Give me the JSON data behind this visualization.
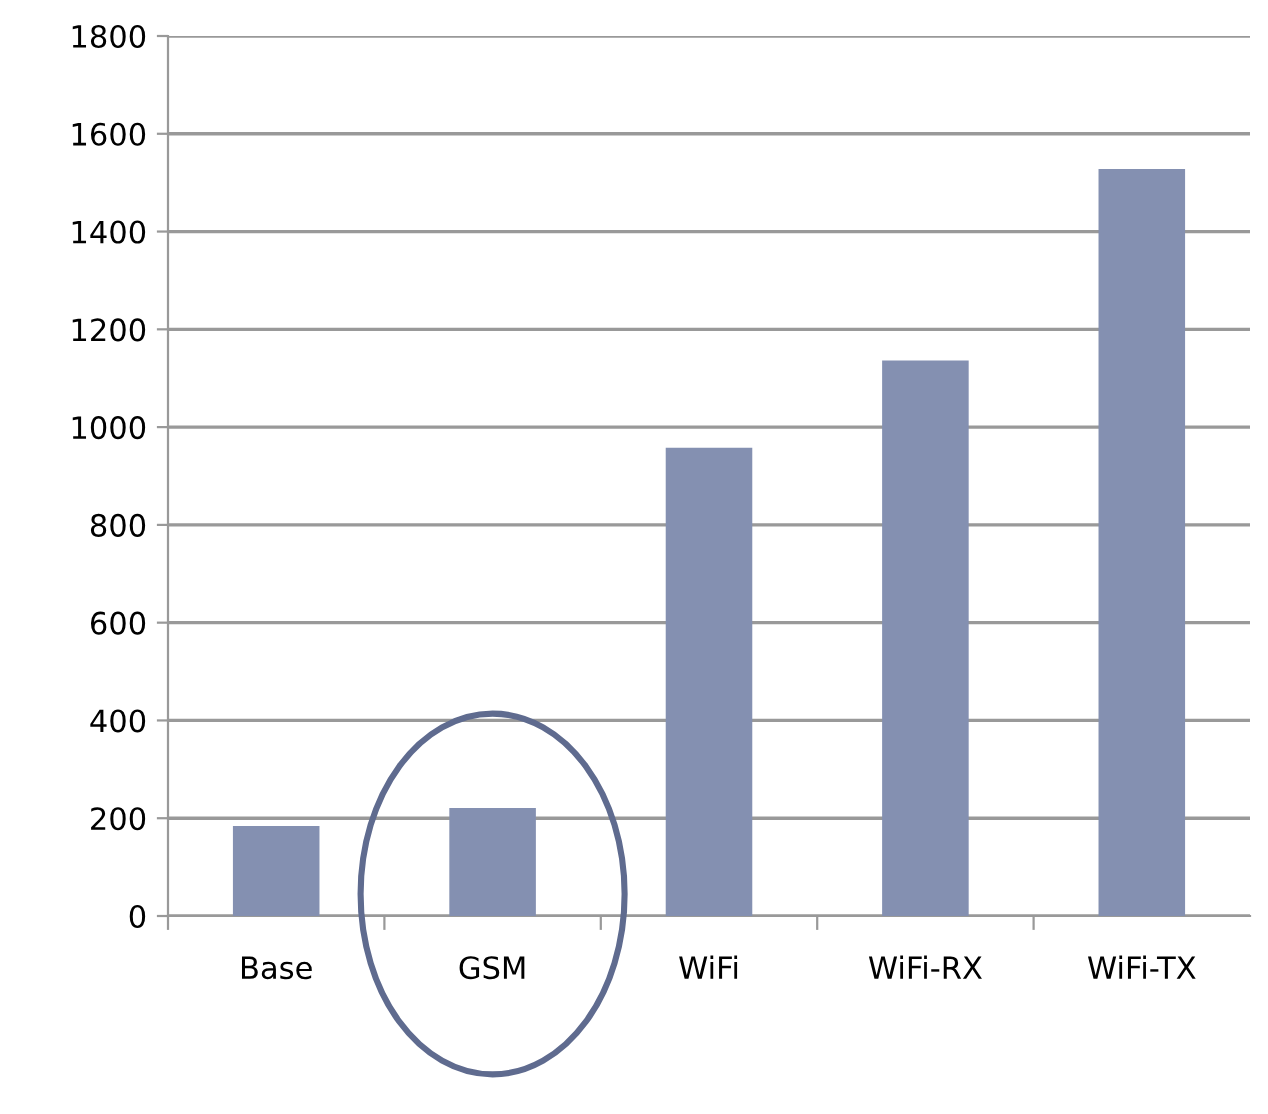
{
  "chart_data": {
    "type": "bar",
    "categories": [
      "Base",
      "GSM",
      "WiFi",
      "WiFi-RX",
      "WiFi-TX"
    ],
    "values": [
      184,
      221,
      958,
      1136,
      1528
    ],
    "color": "#8490b1",
    "ylim": [
      0,
      1800
    ],
    "yticks": [
      0,
      200,
      400,
      600,
      800,
      1000,
      1200,
      1400,
      1600,
      1800
    ],
    "grid": "y",
    "legend": false
  }
}
